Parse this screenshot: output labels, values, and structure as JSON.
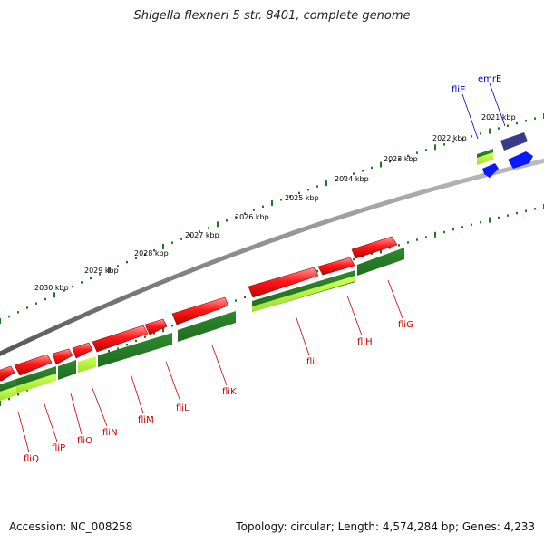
{
  "title": "Shigella flexneri 5 str. 8401, complete genome",
  "footer": {
    "accession": "Accession: NC_008258",
    "summary": "Topology: circular; Length: 4,574,284 bp; Genes: 4,233"
  },
  "colors": {
    "backbone": "#8a8a8a",
    "tick": "#1f7a1f",
    "forward_gene": "#ff1a1a",
    "reverse_gene": "#2e8b2e",
    "reverse_gene_light": "#b8ff3a",
    "label_red": "#cc0000",
    "label_blue": "#0000cc",
    "emr_gene": "#3a3a8a",
    "emr_blue": "#0a1aff"
  },
  "kbp_labels": [
    "2021 kbp",
    "2022 kbp",
    "2023 kbp",
    "2024 kbp",
    "2025 kbp",
    "2026 kbp",
    "2027 kbp",
    "2028 kbp",
    "2029 kbp",
    "2030 kbp"
  ],
  "gene_labels_red": [
    "fliQ",
    "fliP",
    "fliO",
    "fliN",
    "fliM",
    "fliL",
    "fliK",
    "fliI",
    "fliH",
    "fliG"
  ],
  "gene_labels_blue": [
    "fliE",
    "emrE"
  ]
}
